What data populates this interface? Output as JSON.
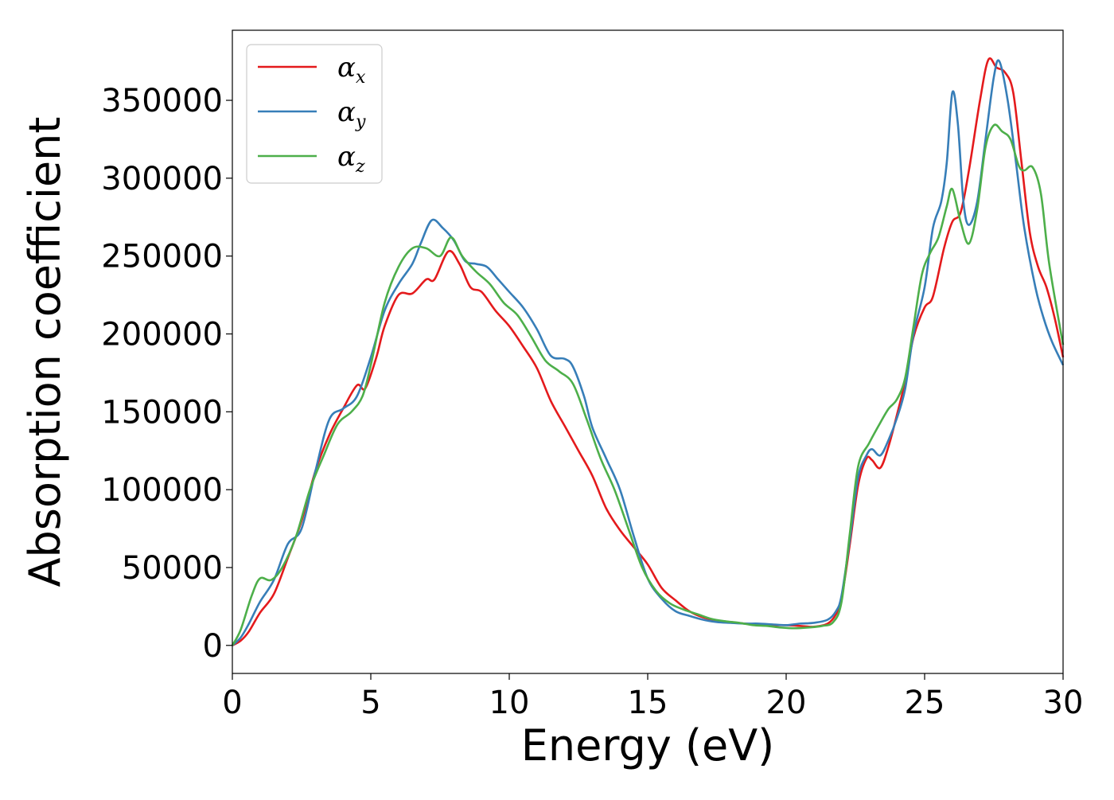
{
  "chart_data": {
    "type": "line",
    "xlabel": "Energy (eV)",
    "ylabel": "Absorption coefficient",
    "xlim": [
      0,
      30
    ],
    "ylim": [
      -18000,
      395000
    ],
    "x_ticks": [
      "0",
      "5",
      "10",
      "15",
      "20",
      "25",
      "30"
    ],
    "y_ticks": [
      "0",
      "50000",
      "100000",
      "150000",
      "200000",
      "250000",
      "300000",
      "350000"
    ],
    "grid": false,
    "legend_position": "top-left",
    "series": [
      {
        "name": "α",
        "subscript": "x",
        "color": "#e41a1c",
        "points": [
          [
            0,
            0
          ],
          [
            0.3,
            3000
          ],
          [
            0.6,
            9000
          ],
          [
            1,
            21000
          ],
          [
            1.5,
            33000
          ],
          [
            2,
            56000
          ],
          [
            2.5,
            80000
          ],
          [
            3,
            112000
          ],
          [
            3.5,
            135000
          ],
          [
            4,
            152000
          ],
          [
            4.5,
            167000
          ],
          [
            4.8,
            165000
          ],
          [
            5.2,
            185000
          ],
          [
            5.5,
            205000
          ],
          [
            6,
            225000
          ],
          [
            6.5,
            226000
          ],
          [
            7,
            235000
          ],
          [
            7.3,
            235000
          ],
          [
            7.8,
            253000
          ],
          [
            8.2,
            245000
          ],
          [
            8.6,
            230000
          ],
          [
            9,
            227000
          ],
          [
            9.5,
            215000
          ],
          [
            10,
            205000
          ],
          [
            10.5,
            192000
          ],
          [
            11,
            178000
          ],
          [
            11.5,
            157000
          ],
          [
            12,
            141000
          ],
          [
            12.5,
            125000
          ],
          [
            13,
            109000
          ],
          [
            13.5,
            88000
          ],
          [
            14,
            74000
          ],
          [
            14.5,
            63000
          ],
          [
            15,
            52000
          ],
          [
            15.5,
            37000
          ],
          [
            16,
            29000
          ],
          [
            16.5,
            22000
          ],
          [
            17,
            18000
          ],
          [
            17.5,
            16000
          ],
          [
            18,
            15000
          ],
          [
            18.5,
            14000
          ],
          [
            19,
            13500
          ],
          [
            19.5,
            13000
          ],
          [
            20,
            13000
          ],
          [
            20.5,
            12500
          ],
          [
            21,
            12000
          ],
          [
            21.5,
            14000
          ],
          [
            21.8,
            20000
          ],
          [
            22,
            30000
          ],
          [
            22.3,
            65000
          ],
          [
            22.6,
            103000
          ],
          [
            22.9,
            120000
          ],
          [
            23.1,
            119000
          ],
          [
            23.4,
            114000
          ],
          [
            23.7,
            128000
          ],
          [
            24,
            148000
          ],
          [
            24.3,
            170000
          ],
          [
            24.6,
            198000
          ],
          [
            25,
            217000
          ],
          [
            25.3,
            224000
          ],
          [
            25.7,
            255000
          ],
          [
            26,
            272000
          ],
          [
            26.3,
            278000
          ],
          [
            26.6,
            305000
          ],
          [
            27,
            350000
          ],
          [
            27.3,
            376000
          ],
          [
            27.6,
            371000
          ],
          [
            27.9,
            368000
          ],
          [
            28.2,
            355000
          ],
          [
            28.5,
            310000
          ],
          [
            28.8,
            265000
          ],
          [
            29.1,
            243000
          ],
          [
            29.4,
            230000
          ],
          [
            29.7,
            210000
          ],
          [
            30,
            185000
          ]
        ]
      },
      {
        "name": "α",
        "subscript": "y",
        "color": "#377eb8",
        "points": [
          [
            0,
            0
          ],
          [
            0.3,
            5000
          ],
          [
            0.6,
            14000
          ],
          [
            1,
            28000
          ],
          [
            1.5,
            42000
          ],
          [
            2,
            65000
          ],
          [
            2.5,
            75000
          ],
          [
            3,
            112000
          ],
          [
            3.5,
            145000
          ],
          [
            4,
            152000
          ],
          [
            4.5,
            160000
          ],
          [
            5,
            185000
          ],
          [
            5.5,
            215000
          ],
          [
            6,
            232000
          ],
          [
            6.5,
            245000
          ],
          [
            6.8,
            258000
          ],
          [
            7.2,
            273000
          ],
          [
            7.6,
            268000
          ],
          [
            8,
            260000
          ],
          [
            8.4,
            247000
          ],
          [
            8.8,
            245000
          ],
          [
            9.2,
            243000
          ],
          [
            9.6,
            235000
          ],
          [
            10,
            227000
          ],
          [
            10.5,
            217000
          ],
          [
            11,
            203000
          ],
          [
            11.5,
            186000
          ],
          [
            12,
            184000
          ],
          [
            12.3,
            179000
          ],
          [
            12.7,
            160000
          ],
          [
            13,
            140000
          ],
          [
            13.5,
            120000
          ],
          [
            14,
            100000
          ],
          [
            14.5,
            70000
          ],
          [
            15,
            43000
          ],
          [
            15.5,
            30000
          ],
          [
            16,
            22000
          ],
          [
            16.5,
            19000
          ],
          [
            17,
            16500
          ],
          [
            17.5,
            15000
          ],
          [
            18,
            14500
          ],
          [
            18.5,
            14000
          ],
          [
            19,
            14000
          ],
          [
            19.5,
            13500
          ],
          [
            20,
            13000
          ],
          [
            20.5,
            14000
          ],
          [
            21,
            14500
          ],
          [
            21.5,
            16500
          ],
          [
            21.8,
            22000
          ],
          [
            22,
            32000
          ],
          [
            22.3,
            68000
          ],
          [
            22.6,
            108000
          ],
          [
            22.9,
            122000
          ],
          [
            23.1,
            126000
          ],
          [
            23.4,
            122000
          ],
          [
            23.7,
            132000
          ],
          [
            24,
            146000
          ],
          [
            24.3,
            165000
          ],
          [
            24.6,
            200000
          ],
          [
            25,
            230000
          ],
          [
            25.3,
            268000
          ],
          [
            25.6,
            285000
          ],
          [
            25.8,
            310000
          ],
          [
            26,
            355000
          ],
          [
            26.2,
            335000
          ],
          [
            26.4,
            285000
          ],
          [
            26.6,
            270000
          ],
          [
            26.9,
            285000
          ],
          [
            27.2,
            325000
          ],
          [
            27.5,
            365000
          ],
          [
            27.7,
            375000
          ],
          [
            28,
            350000
          ],
          [
            28.3,
            310000
          ],
          [
            28.6,
            268000
          ],
          [
            29,
            230000
          ],
          [
            29.3,
            210000
          ],
          [
            29.6,
            195000
          ],
          [
            30,
            180000
          ]
        ]
      },
      {
        "name": "α",
        "subscript": "z",
        "color": "#4daf4a",
        "points": [
          [
            0,
            0
          ],
          [
            0.3,
            10000
          ],
          [
            0.7,
            32000
          ],
          [
            1,
            43000
          ],
          [
            1.4,
            42000
          ],
          [
            1.8,
            50000
          ],
          [
            2.3,
            70000
          ],
          [
            2.8,
            100000
          ],
          [
            3.3,
            122000
          ],
          [
            3.8,
            142000
          ],
          [
            4.3,
            150000
          ],
          [
            4.7,
            160000
          ],
          [
            5,
            180000
          ],
          [
            5.5,
            220000
          ],
          [
            6,
            243000
          ],
          [
            6.5,
            255000
          ],
          [
            7,
            255000
          ],
          [
            7.5,
            250000
          ],
          [
            7.9,
            262000
          ],
          [
            8.3,
            250000
          ],
          [
            8.8,
            240000
          ],
          [
            9.3,
            232000
          ],
          [
            9.8,
            220000
          ],
          [
            10.3,
            212000
          ],
          [
            10.8,
            198000
          ],
          [
            11.3,
            183000
          ],
          [
            11.8,
            176000
          ],
          [
            12.3,
            168000
          ],
          [
            12.8,
            145000
          ],
          [
            13.3,
            120000
          ],
          [
            13.8,
            100000
          ],
          [
            14.3,
            75000
          ],
          [
            14.8,
            50000
          ],
          [
            15.3,
            35000
          ],
          [
            15.8,
            27000
          ],
          [
            16.3,
            23000
          ],
          [
            16.8,
            20000
          ],
          [
            17.3,
            17000
          ],
          [
            17.8,
            15500
          ],
          [
            18.3,
            14500
          ],
          [
            18.8,
            13000
          ],
          [
            19.3,
            12500
          ],
          [
            19.8,
            11500
          ],
          [
            20.3,
            11000
          ],
          [
            20.8,
            11500
          ],
          [
            21.3,
            12500
          ],
          [
            21.7,
            15000
          ],
          [
            22,
            28000
          ],
          [
            22.3,
            72000
          ],
          [
            22.6,
            115000
          ],
          [
            23,
            130000
          ],
          [
            23.4,
            143000
          ],
          [
            23.7,
            152000
          ],
          [
            24,
            158000
          ],
          [
            24.3,
            172000
          ],
          [
            24.6,
            205000
          ],
          [
            24.9,
            238000
          ],
          [
            25.2,
            252000
          ],
          [
            25.5,
            262000
          ],
          [
            25.8,
            282000
          ],
          [
            26,
            293000
          ],
          [
            26.3,
            272000
          ],
          [
            26.6,
            258000
          ],
          [
            26.9,
            280000
          ],
          [
            27.2,
            320000
          ],
          [
            27.5,
            334000
          ],
          [
            27.8,
            330000
          ],
          [
            28.1,
            325000
          ],
          [
            28.4,
            308000
          ],
          [
            28.6,
            305000
          ],
          [
            28.9,
            307000
          ],
          [
            29.2,
            290000
          ],
          [
            29.5,
            245000
          ],
          [
            30,
            193000
          ]
        ]
      }
    ]
  }
}
